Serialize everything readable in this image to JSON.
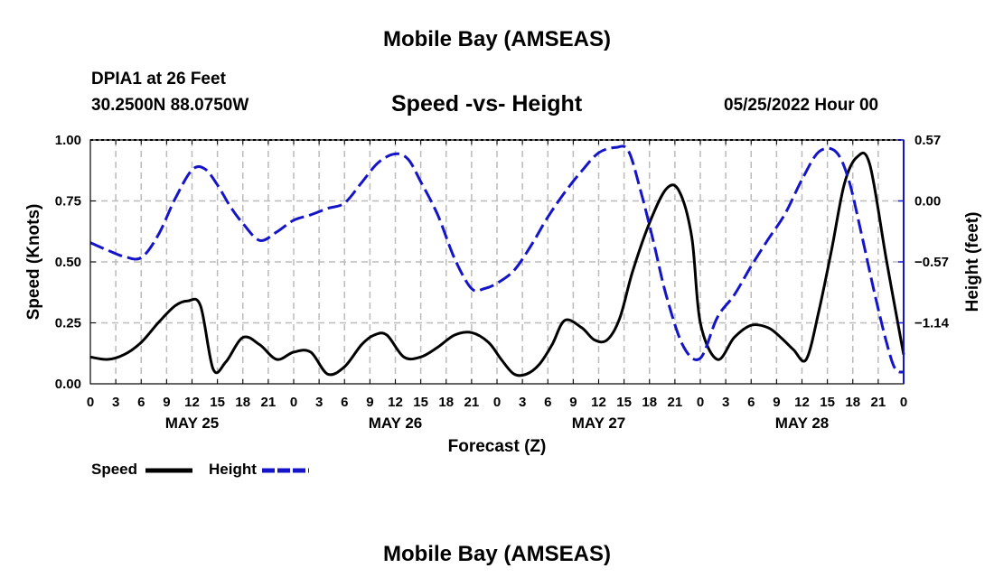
{
  "header": {
    "title": "Mobile Bay (AMSEAS)",
    "station": "DPIA1 at 26 Feet",
    "coordinates": "30.2500N  88.0750W",
    "chart_title": "Speed -vs- Height",
    "datetime": "05/25/2022 Hour 00"
  },
  "footer": {
    "title": "Mobile Bay (AMSEAS)"
  },
  "colors": {
    "speed": "#000000",
    "height": "#1414c8",
    "grid": "#bbbbbb"
  },
  "chart_data": {
    "type": "line",
    "title": "Speed -vs- Height",
    "xlabel": "Forecast (Z)",
    "ylabel": "Speed (Knots)",
    "y2label": "Height (feet)",
    "grid": true,
    "legend_position": "bottom-left",
    "x_tick_labels": [
      "0",
      "3",
      "6",
      "9",
      "12",
      "15",
      "18",
      "21",
      "0",
      "3",
      "6",
      "9",
      "12",
      "15",
      "18",
      "21",
      "0",
      "3",
      "6",
      "9",
      "12",
      "15",
      "18",
      "21",
      "0",
      "3",
      "6",
      "9",
      "12",
      "15",
      "18",
      "21",
      "0"
    ],
    "day_labels": [
      {
        "label": "MAY 25",
        "hour": 12
      },
      {
        "label": "MAY 26",
        "hour": 36
      },
      {
        "label": "MAY 27",
        "hour": 60
      },
      {
        "label": "MAY 28",
        "hour": 84
      }
    ],
    "xlim": [
      0,
      96
    ],
    "ylim": [
      0,
      1.0
    ],
    "y_ticks": [
      "0.00",
      "0.25",
      "0.50",
      "0.75",
      "1.00"
    ],
    "y2lim": [
      -1.71,
      0.57
    ],
    "y2_ticks": [
      "-1.14",
      "-0.57",
      "0.00",
      "0.57"
    ],
    "series": [
      {
        "name": "Speed",
        "axis": "left",
        "style": "solid",
        "x": [
          0,
          2,
          4,
          6,
          8,
          10,
          11.5,
          13,
          14.5,
          16,
          18,
          20,
          22,
          24,
          26,
          28,
          30,
          32,
          33.5,
          35,
          37,
          39,
          41,
          43,
          45,
          47,
          48.5,
          50,
          51.5,
          53,
          54.5,
          56,
          58,
          59.5,
          61,
          62.5,
          64,
          66,
          68,
          69.5,
          71,
          72,
          74,
          76,
          78,
          80,
          81.5,
          83,
          84.5,
          86,
          87.5,
          89,
          90.5,
          92,
          94,
          96
        ],
        "values": [
          0.11,
          0.1,
          0.12,
          0.17,
          0.25,
          0.32,
          0.34,
          0.32,
          0.06,
          0.09,
          0.19,
          0.16,
          0.1,
          0.13,
          0.13,
          0.04,
          0.07,
          0.16,
          0.2,
          0.2,
          0.11,
          0.11,
          0.15,
          0.2,
          0.21,
          0.17,
          0.1,
          0.04,
          0.04,
          0.08,
          0.16,
          0.26,
          0.23,
          0.18,
          0.18,
          0.27,
          0.46,
          0.66,
          0.8,
          0.79,
          0.6,
          0.25,
          0.1,
          0.19,
          0.24,
          0.23,
          0.19,
          0.14,
          0.1,
          0.3,
          0.55,
          0.82,
          0.93,
          0.9,
          0.5,
          0.12
        ]
      },
      {
        "name": "Height",
        "axis": "right",
        "style": "dashed",
        "x": [
          0,
          2,
          4,
          6,
          8,
          10,
          12,
          13.5,
          15,
          16.5,
          18,
          20,
          22,
          24,
          26,
          28,
          30,
          32,
          34,
          36,
          37.5,
          39,
          41,
          43,
          45,
          46.5,
          48,
          50,
          52,
          54,
          56,
          58,
          60,
          62,
          63.5,
          65,
          66.5,
          68,
          70,
          72,
          74,
          76,
          78,
          80,
          82,
          84,
          86,
          88,
          89.5,
          91,
          92.5,
          94,
          95,
          96
        ],
        "values": [
          -0.39,
          -0.46,
          -0.52,
          -0.53,
          -0.32,
          0.02,
          0.29,
          0.3,
          0.15,
          -0.05,
          -0.21,
          -0.37,
          -0.29,
          -0.18,
          -0.13,
          -0.07,
          -0.02,
          0.17,
          0.36,
          0.44,
          0.39,
          0.18,
          -0.13,
          -0.54,
          -0.82,
          -0.82,
          -0.77,
          -0.65,
          -0.42,
          -0.15,
          0.08,
          0.28,
          0.45,
          0.5,
          0.47,
          0.08,
          -0.39,
          -0.89,
          -1.36,
          -1.47,
          -1.09,
          -0.88,
          -0.61,
          -0.36,
          -0.12,
          0.2,
          0.46,
          0.46,
          0.2,
          -0.3,
          -0.84,
          -1.33,
          -1.57,
          -1.6
        ]
      }
    ]
  },
  "legend": {
    "speed_label": "Speed",
    "height_label": "Height"
  }
}
